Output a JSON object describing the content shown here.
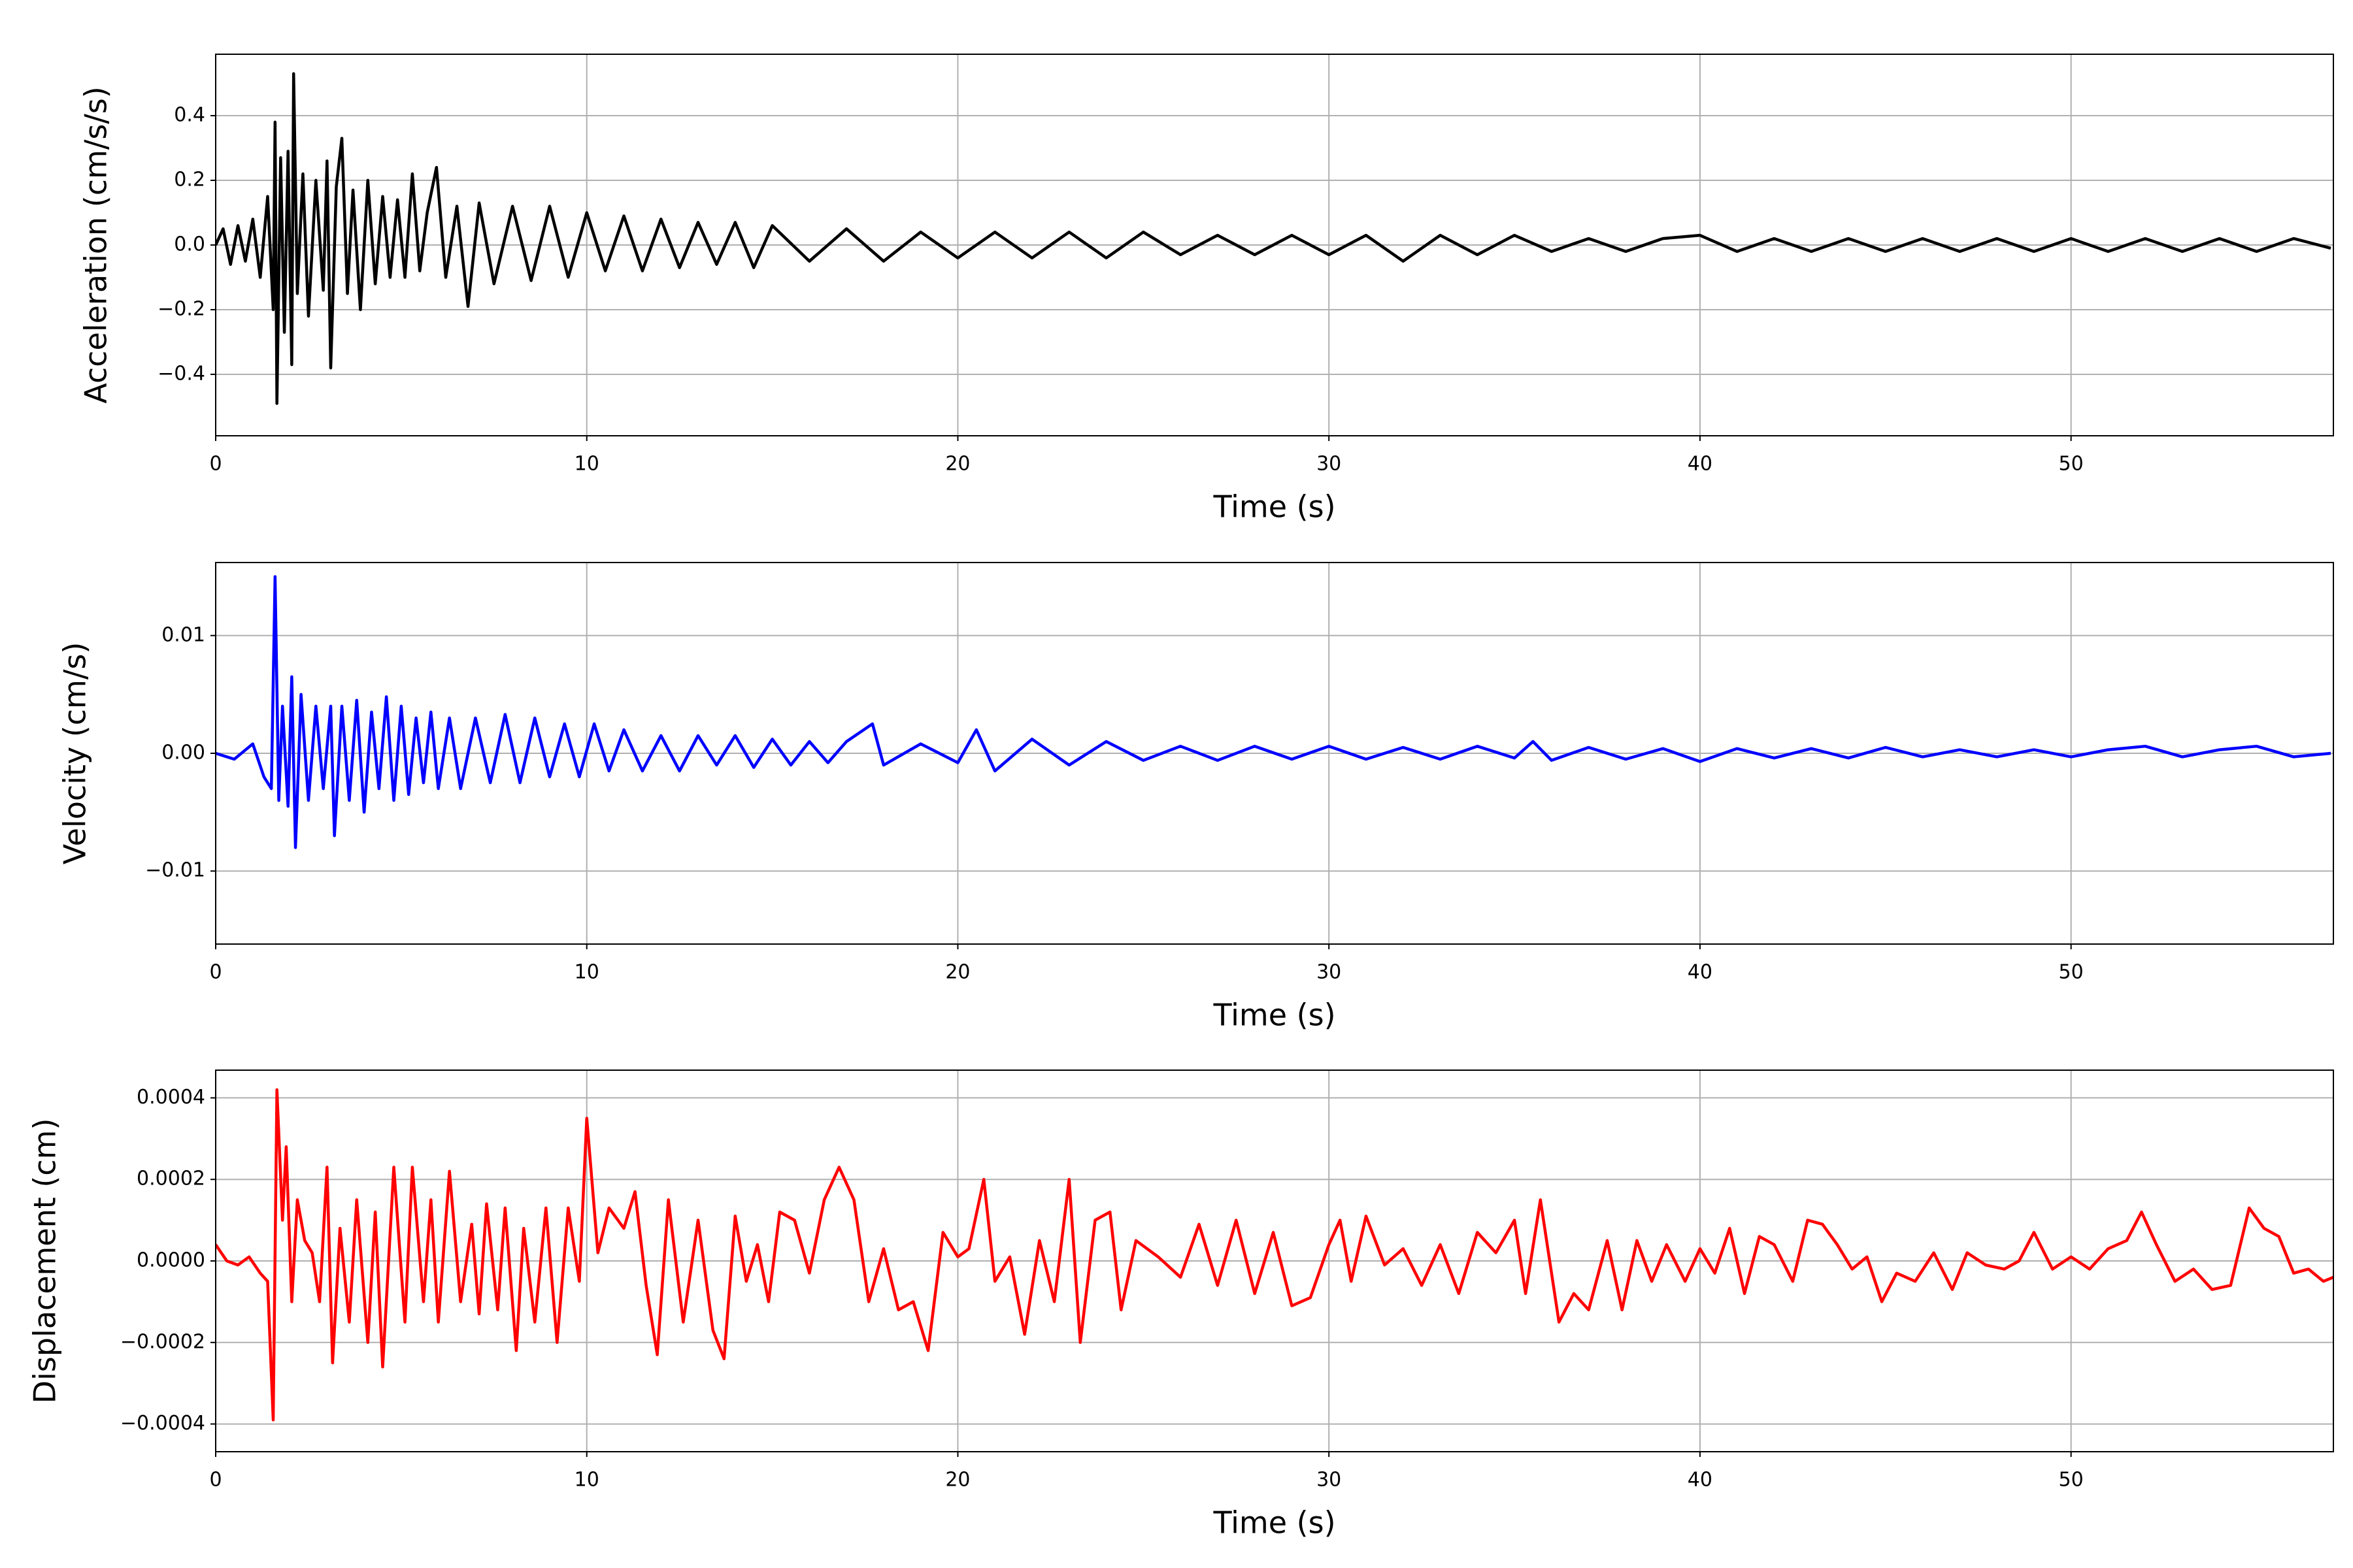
{
  "chart_data": [
    {
      "type": "line",
      "color": "#000000",
      "xlabel": "Time (s)",
      "ylabel": "Acceleration (cm/s/s)",
      "xlim": [
        0,
        57.07
      ],
      "ylim": [
        -0.59,
        0.59
      ],
      "grid": true,
      "xticks": [
        0,
        10,
        20,
        30,
        40,
        50
      ],
      "yticks": [
        {
          "value": -0.4,
          "label": "−0.4"
        },
        {
          "value": -0.2,
          "label": "−0.2"
        },
        {
          "value": 0,
          "label": "0.0"
        },
        0.2,
        0.4
      ],
      "x": [
        0,
        0.2,
        0.4,
        0.6,
        0.8,
        1.0,
        1.2,
        1.4,
        1.55,
        1.6,
        1.65,
        1.75,
        1.85,
        1.95,
        2.05,
        2.1,
        2.2,
        2.35,
        2.5,
        2.7,
        2.9,
        3.0,
        3.1,
        3.25,
        3.4,
        3.55,
        3.7,
        3.9,
        4.1,
        4.3,
        4.5,
        4.7,
        4.9,
        5.1,
        5.3,
        5.5,
        5.7,
        5.95,
        6.2,
        6.5,
        6.8,
        7.1,
        7.5,
        8,
        8.5,
        9,
        9.5,
        10,
        10.5,
        11,
        11.5,
        12,
        12.5,
        13,
        13.5,
        14,
        14.5,
        15,
        16,
        17,
        18,
        19,
        20,
        21,
        22,
        23,
        24,
        25,
        26,
        27,
        28,
        29,
        30,
        31,
        32,
        33,
        34,
        35,
        36,
        37,
        38,
        39,
        40,
        41,
        42,
        43,
        44,
        45,
        46,
        47,
        48,
        49,
        50,
        51,
        52,
        53,
        54,
        55,
        56,
        57
      ],
      "values": [
        0,
        0.05,
        -0.06,
        0.06,
        -0.05,
        0.08,
        -0.1,
        0.15,
        -0.2,
        0.38,
        -0.49,
        0.27,
        -0.27,
        0.29,
        -0.37,
        0.53,
        -0.15,
        0.22,
        -0.22,
        0.2,
        -0.14,
        0.26,
        -0.38,
        0.18,
        0.33,
        -0.15,
        0.17,
        -0.2,
        0.2,
        -0.12,
        0.15,
        -0.1,
        0.14,
        -0.1,
        0.22,
        -0.08,
        0.1,
        0.24,
        -0.1,
        0.12,
        -0.19,
        0.13,
        -0.12,
        0.12,
        -0.11,
        0.12,
        -0.1,
        0.1,
        -0.08,
        0.09,
        -0.08,
        0.08,
        -0.07,
        0.07,
        -0.06,
        0.07,
        -0.07,
        0.06,
        -0.05,
        0.05,
        -0.05,
        0.04,
        -0.04,
        0.04,
        -0.04,
        0.04,
        -0.04,
        0.04,
        -0.03,
        0.03,
        -0.03,
        0.03,
        -0.03,
        0.03,
        -0.05,
        0.03,
        -0.03,
        0.03,
        -0.02,
        0.02,
        -0.02,
        0.02,
        0.03,
        -0.02,
        0.02,
        -0.02,
        0.02,
        -0.02,
        0.02,
        -0.02,
        0.02,
        -0.02,
        0.02,
        -0.02,
        0.02,
        -0.02,
        0.02,
        -0.02,
        0.02,
        -0.01
      ]
    },
    {
      "type": "line",
      "color": "#0000ff",
      "xlabel": "Time (s)",
      "ylabel": "Velocity (cm/s)",
      "xlim": [
        0,
        57.07
      ],
      "ylim": [
        -0.0162,
        0.0162
      ],
      "grid": true,
      "xticks": [
        0,
        10,
        20,
        30,
        40,
        50
      ],
      "yticks": [
        {
          "value": -0.01,
          "label": "−0.01"
        },
        {
          "value": 0,
          "label": "0.00"
        },
        0.01
      ],
      "x": [
        0,
        0.5,
        1,
        1.3,
        1.5,
        1.6,
        1.7,
        1.8,
        1.95,
        2.05,
        2.15,
        2.3,
        2.5,
        2.7,
        2.9,
        3.1,
        3.2,
        3.4,
        3.6,
        3.8,
        4.0,
        4.2,
        4.4,
        4.6,
        4.8,
        5.0,
        5.2,
        5.4,
        5.6,
        5.8,
        6.0,
        6.3,
        6.6,
        7,
        7.4,
        7.8,
        8.2,
        8.6,
        9,
        9.4,
        9.8,
        10.2,
        10.6,
        11,
        11.5,
        12,
        12.5,
        13,
        13.5,
        14,
        14.5,
        15,
        15.5,
        16,
        16.5,
        17,
        17.7,
        18,
        19,
        20,
        20.5,
        21,
        22,
        23,
        24,
        25,
        26,
        27,
        28,
        29,
        30,
        31,
        32,
        33,
        34,
        35,
        35.5,
        36,
        37,
        38,
        39,
        40,
        41,
        42,
        43,
        44,
        45,
        46,
        47,
        48,
        49,
        50,
        51,
        52,
        53,
        54,
        55,
        56,
        57
      ],
      "values": [
        0,
        -0.0005,
        0.0008,
        -0.002,
        -0.003,
        0.015,
        -0.004,
        0.004,
        -0.0045,
        0.0065,
        -0.008,
        0.005,
        -0.004,
        0.004,
        -0.003,
        0.004,
        -0.007,
        0.004,
        -0.004,
        0.0045,
        -0.005,
        0.0035,
        -0.003,
        0.0048,
        -0.004,
        0.004,
        -0.0035,
        0.003,
        -0.0025,
        0.0035,
        -0.003,
        0.003,
        -0.003,
        0.003,
        -0.0025,
        0.0033,
        -0.0025,
        0.003,
        -0.002,
        0.0025,
        -0.002,
        0.0025,
        -0.0015,
        0.002,
        -0.0015,
        0.0015,
        -0.0015,
        0.0015,
        -0.001,
        0.0015,
        -0.0012,
        0.0012,
        -0.001,
        0.001,
        -0.0008,
        0.001,
        0.0025,
        -0.001,
        0.0008,
        -0.0008,
        0.002,
        -0.0015,
        0.0012,
        -0.001,
        0.001,
        -0.0006,
        0.0006,
        -0.0006,
        0.0006,
        -0.0005,
        0.0006,
        -0.0005,
        0.0005,
        -0.0005,
        0.0006,
        -0.0004,
        0.001,
        -0.0006,
        0.0005,
        -0.0005,
        0.0004,
        -0.0007,
        0.0004,
        -0.0004,
        0.0004,
        -0.0004,
        0.0005,
        -0.0003,
        0.0003,
        -0.0003,
        0.0003,
        -0.0003,
        0.0003,
        0.0006,
        -0.0003,
        0.0003,
        0.0006,
        -0.0003,
        0
      ]
    },
    {
      "type": "line",
      "color": "#ff0000",
      "xlabel": "Time (s)",
      "ylabel": "Displacement (cm)",
      "xlim": [
        0,
        57.07
      ],
      "ylim": [
        -0.000468,
        0.000468
      ],
      "grid": true,
      "xticks": [
        0,
        10,
        20,
        30,
        40,
        50
      ],
      "yticks": [
        {
          "value": -0.0004,
          "label": "−0.0004"
        },
        {
          "value": -0.0002,
          "label": "−0.0002"
        },
        {
          "value": 0,
          "label": "0.0000"
        },
        0.0002,
        0.0004
      ],
      "x": [
        0,
        0.3,
        0.6,
        0.9,
        1.2,
        1.4,
        1.55,
        1.65,
        1.8,
        1.9,
        2.05,
        2.2,
        2.4,
        2.6,
        2.8,
        3.0,
        3.15,
        3.35,
        3.6,
        3.8,
        4.1,
        4.3,
        4.5,
        4.8,
        5.1,
        5.3,
        5.6,
        5.8,
        6.0,
        6.3,
        6.6,
        6.9,
        7.1,
        7.3,
        7.6,
        7.8,
        8.1,
        8.3,
        8.6,
        8.9,
        9.2,
        9.5,
        9.8,
        10.0,
        10.3,
        10.6,
        11.0,
        11.3,
        11.6,
        11.9,
        12.2,
        12.6,
        13.0,
        13.4,
        13.7,
        14.0,
        14.3,
        14.6,
        14.9,
        15.2,
        15.6,
        16.0,
        16.4,
        16.8,
        17.2,
        17.6,
        18.0,
        18.4,
        18.8,
        19.2,
        19.6,
        20.0,
        20.3,
        20.7,
        21.0,
        21.4,
        21.8,
        22.2,
        22.6,
        23.0,
        23.3,
        23.7,
        24.1,
        24.4,
        24.8,
        25.4,
        26.0,
        26.5,
        27.0,
        27.5,
        28.0,
        28.5,
        29.0,
        29.5,
        30.0,
        30.3,
        30.6,
        31.0,
        31.5,
        32.0,
        32.5,
        33.0,
        33.5,
        34.0,
        34.5,
        35.0,
        35.3,
        35.7,
        36.2,
        36.6,
        37.0,
        37.5,
        37.9,
        38.3,
        38.7,
        39.1,
        39.6,
        40.0,
        40.4,
        40.8,
        41.2,
        41.6,
        42.0,
        42.5,
        42.9,
        43.3,
        43.7,
        44.1,
        44.5,
        44.9,
        45.3,
        45.8,
        46.3,
        46.8,
        47.2,
        47.7,
        48.2,
        48.6,
        49.0,
        49.5,
        50.0,
        50.5,
        51.0,
        51.5,
        51.9,
        52.3,
        52.8,
        53.3,
        53.8,
        54.3,
        54.8,
        55.2,
        55.6,
        56.0,
        56.4,
        56.8,
        57.07
      ],
      "values": [
        4e-05,
        0,
        -1e-05,
        1e-05,
        -3e-05,
        -5e-05,
        -0.00039,
        0.00042,
        0.0001,
        0.00028,
        -0.0001,
        0.00015,
        5e-05,
        2e-05,
        -0.0001,
        0.00023,
        -0.00025,
        8e-05,
        -0.00015,
        0.00015,
        -0.0002,
        0.00012,
        -0.00026,
        0.00023,
        -0.00015,
        0.00023,
        -0.0001,
        0.00015,
        -0.00015,
        0.00022,
        -0.0001,
        9e-05,
        -0.00013,
        0.00014,
        -0.00012,
        0.00013,
        -0.00022,
        8e-05,
        -0.00015,
        0.00013,
        -0.0002,
        0.00013,
        -5e-05,
        0.00035,
        2e-05,
        0.00013,
        8e-05,
        0.00017,
        -6e-05,
        -0.00023,
        0.00015,
        -0.00015,
        0.0001,
        -0.00017,
        -0.00024,
        0.00011,
        -5e-05,
        4e-05,
        -0.0001,
        0.00012,
        0.0001,
        -3e-05,
        0.00015,
        0.00023,
        0.00015,
        -0.0001,
        3e-05,
        -0.00012,
        -0.0001,
        -0.00022,
        7e-05,
        1e-05,
        3e-05,
        0.0002,
        -5e-05,
        1e-05,
        -0.00018,
        5e-05,
        -0.0001,
        0.0002,
        -0.0002,
        0.0001,
        0.00012,
        -0.00012,
        5e-05,
        1e-05,
        -4e-05,
        9e-05,
        -6e-05,
        0.0001,
        -8e-05,
        7e-05,
        -0.00011,
        -9e-05,
        4e-05,
        0.0001,
        -5e-05,
        0.00011,
        -1e-05,
        3e-05,
        -6e-05,
        4e-05,
        -8e-05,
        7e-05,
        2e-05,
        0.0001,
        -8e-05,
        0.00015,
        -0.00015,
        -8e-05,
        -0.00012,
        5e-05,
        -0.00012,
        5e-05,
        -5e-05,
        4e-05,
        -5e-05,
        3e-05,
        -3e-05,
        8e-05,
        -8e-05,
        6e-05,
        4e-05,
        -5e-05,
        0.0001,
        9e-05,
        4e-05,
        -2e-05,
        1e-05,
        -0.0001,
        -3e-05,
        -5e-05,
        2e-05,
        -7e-05,
        2e-05,
        -1e-05,
        -2e-05,
        0,
        7e-05,
        -2e-05,
        1e-05,
        -2e-05,
        3e-05,
        5e-05,
        0.00012,
        4e-05,
        -5e-05,
        -2e-05,
        -7e-05,
        -6e-05,
        0.00013,
        8e-05,
        6e-05,
        -3e-05,
        -2e-05,
        -5e-05,
        -4e-05
      ]
    }
  ]
}
